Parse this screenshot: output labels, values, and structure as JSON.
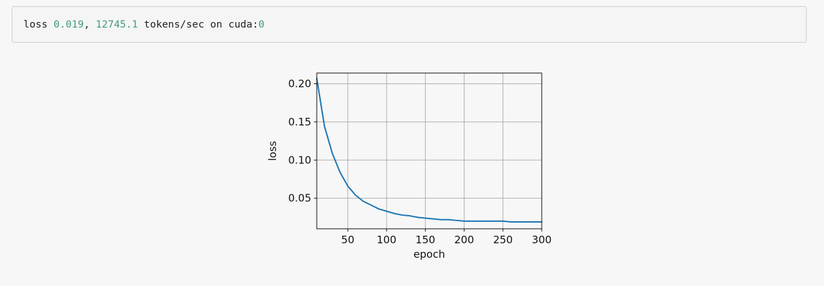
{
  "output": {
    "loss_label": "loss",
    "loss_value": "0.019",
    "comma": ",",
    "speed_value": "12745.1",
    "speed_suffix": "tokens/sec on cuda:",
    "device_index": "0"
  },
  "chart_data": {
    "type": "line",
    "xlabel": "epoch",
    "ylabel": "loss",
    "xlim": [
      10,
      300
    ],
    "ylim": [
      0.01,
      0.214
    ],
    "grid": true,
    "xticks": [
      50,
      100,
      150,
      200,
      250,
      300
    ],
    "yticks": [
      0.05,
      0.1,
      0.15,
      0.2
    ],
    "xtick_labels": [
      "50",
      "100",
      "150",
      "200",
      "250",
      "300"
    ],
    "ytick_labels": [
      "0.05",
      "0.10",
      "0.15",
      "0.20"
    ],
    "series": [
      {
        "color": "#1f77b4",
        "x": [
          10,
          20,
          30,
          40,
          50,
          60,
          70,
          80,
          90,
          100,
          110,
          120,
          130,
          140,
          150,
          160,
          170,
          180,
          190,
          200,
          210,
          220,
          230,
          240,
          250,
          260,
          270,
          280,
          290,
          300
        ],
        "y": [
          0.207,
          0.144,
          0.109,
          0.084,
          0.066,
          0.054,
          0.046,
          0.041,
          0.036,
          0.033,
          0.03,
          0.028,
          0.027,
          0.025,
          0.024,
          0.023,
          0.022,
          0.022,
          0.021,
          0.02,
          0.02,
          0.02,
          0.02,
          0.02,
          0.02,
          0.019,
          0.019,
          0.019,
          0.019,
          0.019
        ]
      }
    ]
  }
}
